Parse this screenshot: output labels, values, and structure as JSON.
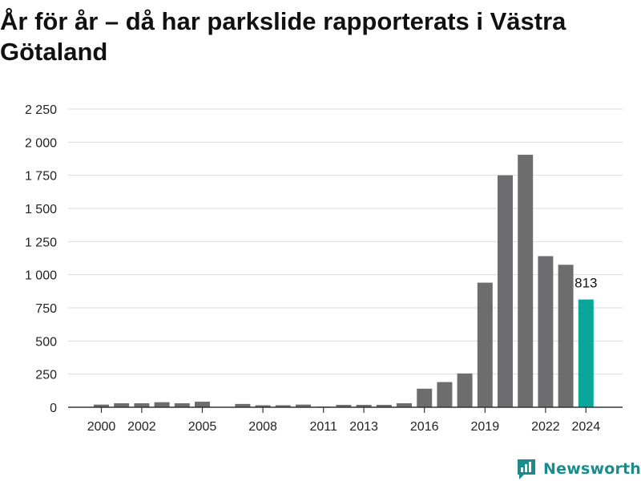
{
  "title": "År för år – då har parkslide rapporterats i Västra Götaland",
  "brand": {
    "name": "Newsworthy",
    "icon": "newsworthy-logo-icon"
  },
  "colors": {
    "bar": "#6d6d70",
    "highlight": "#0aa69a",
    "grid": "#d9d9d9",
    "axis": "#333333",
    "brand": "#1a8c8c"
  },
  "chart_data": {
    "type": "bar",
    "title": "År för år – då har parkslide rapporterats i Västra Götaland",
    "xlabel": "",
    "ylabel": "",
    "categories": [
      2000,
      2001,
      2002,
      2003,
      2004,
      2005,
      2006,
      2007,
      2008,
      2009,
      2010,
      2011,
      2012,
      2013,
      2014,
      2015,
      2016,
      2017,
      2018,
      2019,
      2020,
      2021,
      2022,
      2023,
      2024
    ],
    "values": [
      20,
      30,
      30,
      38,
      30,
      42,
      0,
      25,
      15,
      15,
      20,
      5,
      18,
      18,
      18,
      30,
      140,
      190,
      255,
      940,
      1750,
      1905,
      1140,
      1075,
      813
    ],
    "highlight_index": 24,
    "highlight_label": "813",
    "x_tick_labels": [
      "2000",
      "2002",
      "2005",
      "2008",
      "2011",
      "2013",
      "2016",
      "2019",
      "2022",
      "2024"
    ],
    "y_ticks": [
      0,
      250,
      500,
      750,
      1000,
      1250,
      1500,
      1750,
      2000,
      2250
    ],
    "y_tick_labels": [
      "0",
      "250",
      "500",
      "750",
      "1 000",
      "1 250",
      "1 500",
      "1 750",
      "2 000",
      "2 250"
    ],
    "ylim": [
      0,
      2250
    ],
    "grid": true,
    "legend": "none"
  }
}
